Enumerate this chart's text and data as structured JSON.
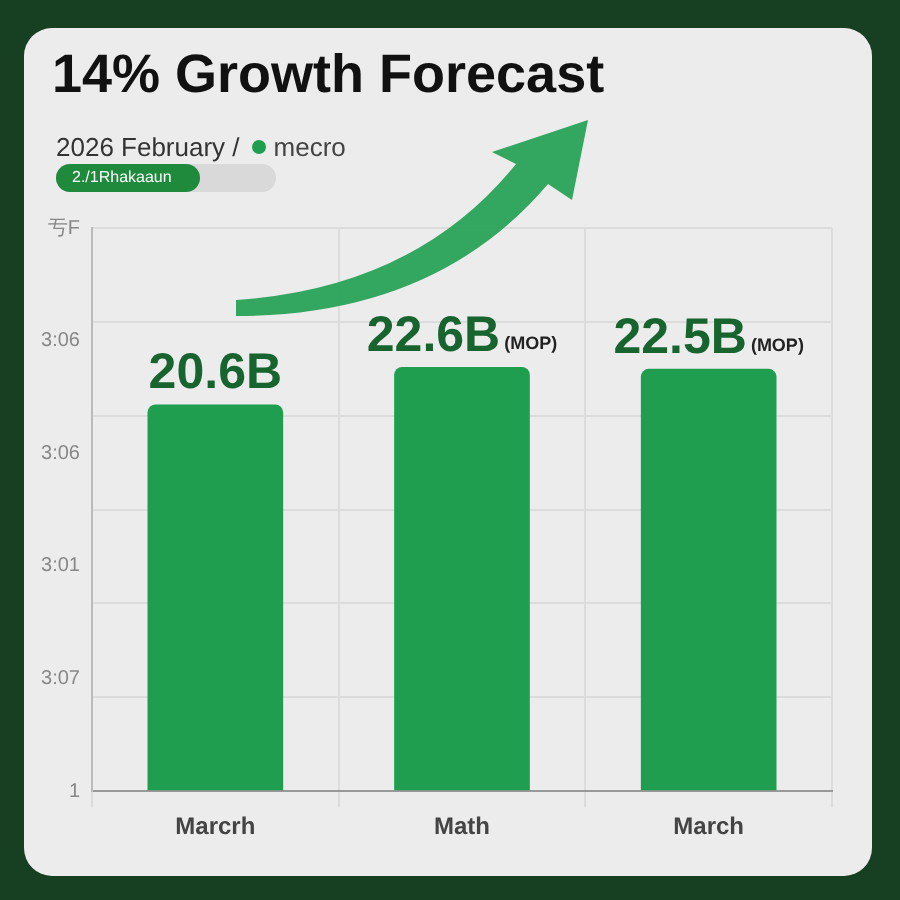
{
  "chart_data": {
    "type": "bar",
    "title": "14% Growth Forecast",
    "subtitle": "2026 February /",
    "annotations": [
      "2./1Rhakaaun",
      "亐F",
      "3:06",
      "3:06",
      "3:01",
      "3:07",
      "1"
    ],
    "categories": [
      "Marcrh",
      "Math",
      "March"
    ],
    "series": [
      {
        "name": "mecro",
        "color": "#1f9e50",
        "values": [
          20.6,
          22.6,
          22.5
        ],
        "value_labels": [
          "20.6B",
          "22.6B(MOP)",
          "22.5B(MOP)"
        ]
      }
    ],
    "grid": true,
    "legend": "top left"
  }
}
